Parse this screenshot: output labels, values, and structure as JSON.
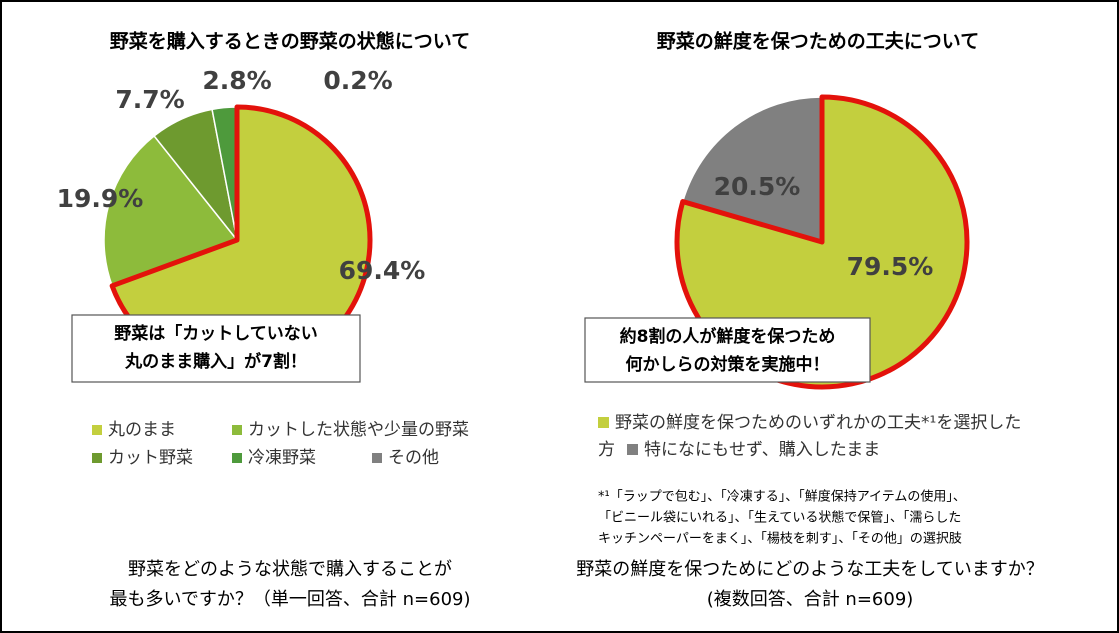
{
  "chart_data": [
    {
      "type": "pie",
      "title": "野菜を購入するときの野菜の状態について",
      "categories": [
        "丸のまま",
        "カットした状態や少量の野菜",
        "カット野菜",
        "冷凍野菜",
        "その他"
      ],
      "values": [
        69.4,
        19.9,
        7.7,
        2.8,
        0.2
      ],
      "value_labels": [
        "69.4%",
        "19.9%",
        "7.7%",
        "2.8%",
        "0.2%"
      ],
      "colors": [
        "#c3cf3e",
        "#8dbb3b",
        "#6e9a2f",
        "#4e9a3c",
        "#808080"
      ],
      "highlight": 0,
      "highlight_color": "#e3120b",
      "annotation": [
        "野菜は「カットしていない",
        "丸のまま購入」が7割！"
      ],
      "question": [
        "野菜をどのような状態で購入することが",
        "最も多いですか？（単一回答、合計 n=609)"
      ]
    },
    {
      "type": "pie",
      "title": "野菜の鮮度を保つための工夫について",
      "categories": [
        "野菜の鮮度を保つためのいずれかの工夫*¹を選択した方",
        "特になにもせず、購入したまま"
      ],
      "values": [
        79.5,
        20.5
      ],
      "value_labels": [
        "79.5%",
        "20.5%"
      ],
      "colors": [
        "#c3cf3e",
        "#808080"
      ],
      "highlight": 0,
      "highlight_color": "#e3120b",
      "annotation": [
        "約8割の人が鮮度を保つため",
        "何かしらの対策を実施中！"
      ],
      "footnote": [
        "*¹「ラップで包む」、「冷凍する」、「鮮度保持アイテムの使用」、",
        "「ビニール袋にいれる」、「生えている状態で保管」、「濡らした",
        "キッチンペーパーをまく」、「楊枝を刺す」、「その他」の選択肢"
      ],
      "question": [
        "野菜の鮮度を保つためにどのような工夫をしていますか？",
        "(複数回答、合計 n=609)"
      ]
    }
  ]
}
